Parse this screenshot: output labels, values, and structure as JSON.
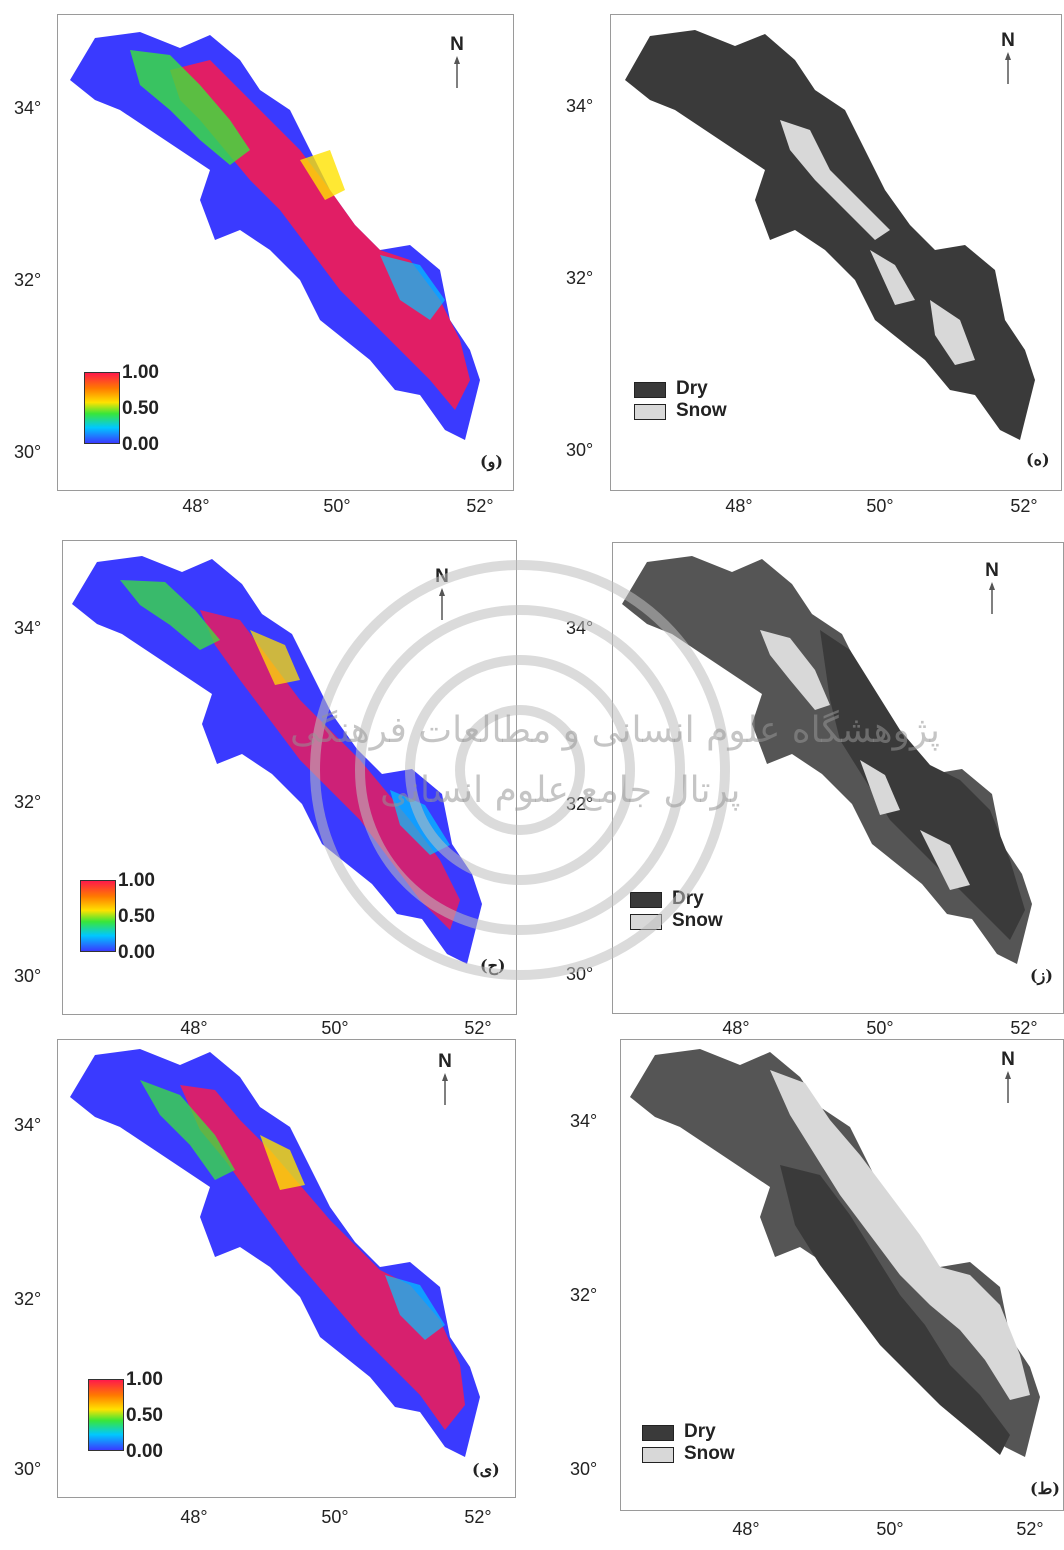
{
  "north_label": "N",
  "lat_ticks": [
    "34°",
    "32°",
    "30°"
  ],
  "lon_ticks": [
    "48°",
    "50°",
    "52°"
  ],
  "continuous_legend": {
    "max": "1.00",
    "mid": "0.50",
    "min": "0.00"
  },
  "class_legend": {
    "dry": "Dry",
    "snow": "Snow"
  },
  "colors": {
    "dry_a": "#3a3a3a",
    "dry_b": "#555555",
    "snow": "#d8d8d8",
    "low": "#3a3aff",
    "high": "#ff1a4a"
  },
  "panels": [
    {
      "id": "p1",
      "type": "continuous",
      "label": "(و)"
    },
    {
      "id": "p2",
      "type": "classified",
      "label": "(ه)"
    },
    {
      "id": "p3",
      "type": "continuous",
      "label": "(ح)"
    },
    {
      "id": "p4",
      "type": "classified",
      "label": "(ز)"
    },
    {
      "id": "p5",
      "type": "continuous",
      "label": "(ی)"
    },
    {
      "id": "p6",
      "type": "classified",
      "label": "(ط)"
    }
  ],
  "watermark_text": [
    "پژوهشگاه علوم انسانی و مطالعات فرهنگی",
    "پرتال جامع علوم انسانی"
  ]
}
